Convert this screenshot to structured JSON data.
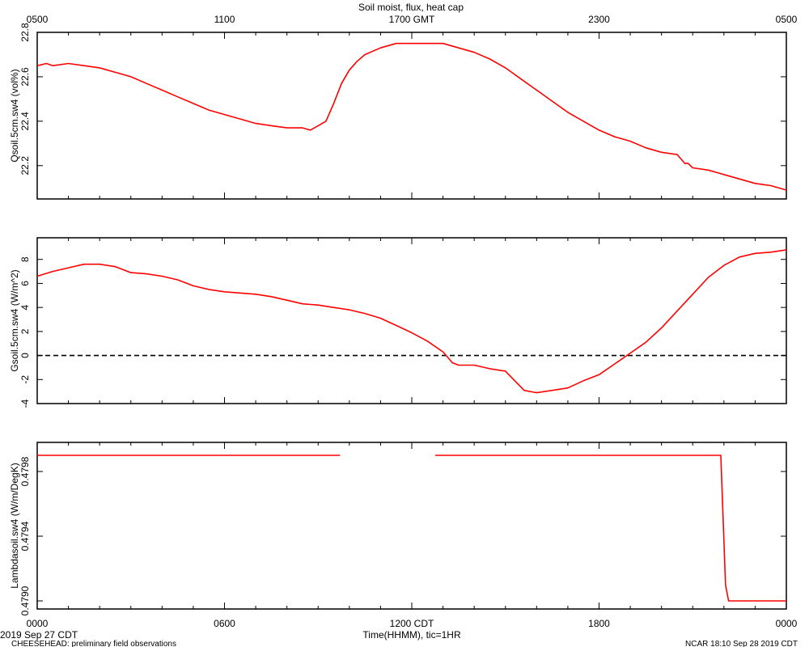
{
  "title": "Soil moist, flux, heat cap",
  "top_axis": {
    "unit_suffix": "GMT",
    "ticks": [
      "0500",
      "1100",
      "1700 GMT",
      "2300",
      "0500"
    ]
  },
  "bottom_axis": {
    "xlabel": "Time(HHMM), tic=1HR",
    "ticks": [
      "0000",
      "0600",
      "1200 CDT",
      "1800",
      "0000"
    ],
    "date_label": "2019 Sep 27 CDT"
  },
  "footer": {
    "left": "CHEESEHEAD: preliminary field observations",
    "right": "NCAR 18:10 Sep 28 2019 CDT"
  },
  "colors": {
    "series": "#ff0000",
    "axis": "#000000",
    "zero_line": "#000000"
  },
  "chart_data": [
    {
      "type": "line",
      "ylabel": "Qsoil.5cm.sw4 (vol%)",
      "x_unit": "hours since 0000 CDT",
      "xlim": [
        0,
        24
      ],
      "ylim": [
        22.05,
        22.8
      ],
      "yticks": [
        22.2,
        22.4,
        22.6,
        22.8
      ],
      "ytick_labels": [
        "22.2",
        "22.4",
        "22.6",
        "22.8"
      ],
      "series": [
        {
          "x": [
            0,
            0.3,
            0.5,
            1,
            1.5,
            2,
            2.5,
            3,
            3.5,
            4,
            4.5,
            5,
            5.5,
            6,
            6.5,
            7,
            7.5,
            8,
            8.5,
            8.75,
            9,
            9.25,
            9.5,
            9.75,
            10,
            10.25,
            10.5,
            11,
            11.5,
            12,
            12.5,
            13,
            13.5,
            14,
            14.5,
            15,
            15.5,
            16,
            16.5,
            17,
            17.5,
            18,
            18.5,
            19,
            19.5,
            20,
            20.5,
            20.75,
            20.85,
            21,
            21.5,
            22,
            22.5,
            23,
            23.5,
            24
          ],
          "y": [
            22.65,
            22.66,
            22.65,
            22.66,
            22.65,
            22.64,
            22.62,
            22.6,
            22.57,
            22.54,
            22.51,
            22.48,
            22.45,
            22.43,
            22.41,
            22.39,
            22.38,
            22.37,
            22.37,
            22.36,
            22.38,
            22.4,
            22.48,
            22.57,
            22.63,
            22.67,
            22.7,
            22.73,
            22.75,
            22.75,
            22.75,
            22.75,
            22.73,
            22.71,
            22.68,
            22.64,
            22.59,
            22.54,
            22.49,
            22.44,
            22.4,
            22.36,
            22.33,
            22.31,
            22.28,
            22.26,
            22.25,
            22.21,
            22.21,
            22.19,
            22.18,
            22.16,
            22.14,
            22.12,
            22.11,
            22.09
          ]
        }
      ]
    },
    {
      "type": "line",
      "ylabel": "Gsoil.5cm.sw4 (W/m^2)",
      "x_unit": "hours since 0000 CDT",
      "xlim": [
        0,
        24
      ],
      "ylim": [
        -4,
        9.8
      ],
      "yticks": [
        -4,
        -2,
        0,
        2,
        4,
        6,
        8
      ],
      "ytick_labels": [
        "-4",
        "-2",
        "0",
        "2",
        "4",
        "6",
        "8"
      ],
      "zero_line": true,
      "series": [
        {
          "x": [
            0,
            0.5,
            1,
            1.5,
            2,
            2.5,
            3,
            3.5,
            4,
            4.5,
            5,
            5.5,
            6,
            6.5,
            7,
            7.5,
            8,
            8.5,
            9,
            9.5,
            10,
            10.5,
            11,
            11.5,
            12,
            12.5,
            13,
            13.3,
            13.5,
            13.8,
            14,
            14.5,
            15,
            15.3,
            15.6,
            16,
            16.5,
            17,
            17.5,
            18,
            18.5,
            19,
            19.5,
            20,
            20.5,
            21,
            21.5,
            22,
            22.5,
            23,
            23.5,
            24
          ],
          "y": [
            6.6,
            7.0,
            7.3,
            7.6,
            7.6,
            7.4,
            6.9,
            6.8,
            6.6,
            6.3,
            5.8,
            5.5,
            5.3,
            5.2,
            5.1,
            4.9,
            4.6,
            4.3,
            4.2,
            4.0,
            3.8,
            3.5,
            3.1,
            2.5,
            1.9,
            1.2,
            0.3,
            -0.6,
            -0.8,
            -0.8,
            -0.8,
            -1.1,
            -1.3,
            -2.1,
            -2.9,
            -3.1,
            -2.9,
            -2.7,
            -2.1,
            -1.6,
            -0.7,
            0.2,
            1.1,
            2.3,
            3.7,
            5.1,
            6.5,
            7.5,
            8.2,
            8.5,
            8.6,
            8.8
          ]
        }
      ]
    },
    {
      "type": "line",
      "ylabel": "Lambdasoil.sw4 (W/m/DegK)",
      "x_unit": "hours since 0000 CDT",
      "xlim": [
        0,
        24
      ],
      "ylim": [
        0.47895,
        0.47998
      ],
      "yticks": [
        0.479,
        0.4794,
        0.4798
      ],
      "ytick_labels": [
        "0.4790",
        "0.4794",
        "0.4798"
      ],
      "series": [
        {
          "x": [
            0,
            9.7
          ],
          "y": [
            0.4799,
            0.4799
          ]
        },
        {
          "x": [
            12.75,
            21.9,
            22.05,
            22.15,
            24
          ],
          "y": [
            0.4799,
            0.4799,
            0.4791,
            0.479,
            0.479
          ]
        }
      ]
    }
  ]
}
